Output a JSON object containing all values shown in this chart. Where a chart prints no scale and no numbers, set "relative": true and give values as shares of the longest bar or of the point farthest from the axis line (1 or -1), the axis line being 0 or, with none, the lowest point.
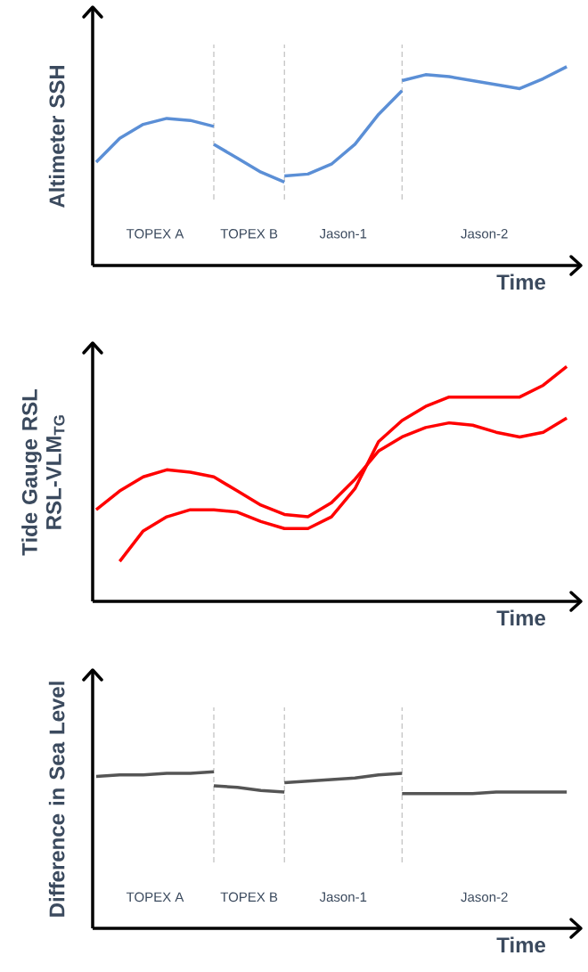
{
  "chart_data": [
    {
      "type": "line",
      "relative": true,
      "ylabel": "Altimeter SSH",
      "xlabel": "Time",
      "categories": [
        null,
        null,
        null,
        null,
        null,
        null,
        null,
        null,
        null,
        null,
        null,
        null,
        null,
        null,
        null,
        null,
        null,
        null,
        null,
        null,
        null
      ],
      "series": [
        {
          "color": "#5b8fd6",
          "values": [
            0.52,
            0.64,
            0.71,
            0.74,
            0.73,
            0.7,
            null,
            null,
            null,
            null,
            null,
            null,
            null,
            null,
            null,
            null,
            null,
            null,
            null,
            null,
            null
          ]
        },
        {
          "color": "#5b8fd6",
          "values": [
            null,
            null,
            null,
            null,
            null,
            0.61,
            0.54,
            0.47,
            0.42,
            null,
            null,
            null,
            null,
            null,
            null,
            null,
            null,
            null,
            null,
            null,
            null
          ]
        },
        {
          "color": "#5b8fd6",
          "values": [
            null,
            null,
            null,
            null,
            null,
            null,
            null,
            null,
            0.45,
            0.46,
            0.51,
            0.61,
            0.76,
            0.88,
            null,
            null,
            null,
            null,
            null,
            null,
            null
          ]
        },
        {
          "color": "#5b8fd6",
          "values": [
            null,
            null,
            null,
            null,
            null,
            null,
            null,
            null,
            null,
            null,
            null,
            null,
            null,
            0.93,
            0.96,
            0.95,
            0.93,
            0.91,
            0.89,
            0.94,
            1.0
          ]
        }
      ],
      "grid": "x",
      "annotations": [
        "TOPEX A",
        "TOPEX B",
        "Jason-1",
        "Jason-2"
      ]
    },
    {
      "type": "line",
      "relative": true,
      "ylabel": "Tide Gauge RSL RSL-VLM$_{TG}$",
      "xlabel": "Time",
      "categories": [
        null,
        null,
        null,
        null,
        null,
        null,
        null,
        null,
        null,
        null,
        null,
        null,
        null,
        null,
        null,
        null,
        null,
        null,
        null,
        null,
        null
      ],
      "series": [
        {
          "color": "#ff0000",
          "values": [
            0.39,
            0.47,
            0.53,
            0.56,
            0.55,
            0.53,
            0.47,
            0.41,
            0.37,
            0.36,
            0.42,
            0.52,
            0.64,
            0.7,
            0.74,
            0.76,
            0.75,
            0.72,
            0.7,
            0.72,
            0.78
          ]
        },
        {
          "color": "#ff0000",
          "values": [
            null,
            0.17,
            0.3,
            0.36,
            0.39,
            0.39,
            0.38,
            0.34,
            0.31,
            0.31,
            0.36,
            0.48,
            0.68,
            0.77,
            0.83,
            0.87,
            0.87,
            0.87,
            0.87,
            0.92,
            1.0
          ]
        }
      ]
    },
    {
      "type": "line",
      "relative": true,
      "ylabel": "Difference in Sea Level",
      "xlabel": "Time",
      "categories": [
        null,
        null,
        null,
        null,
        null,
        null,
        null,
        null,
        null,
        null,
        null,
        null,
        null,
        null,
        null,
        null,
        null,
        null,
        null,
        null,
        null
      ],
      "series": [
        {
          "color": "#555555",
          "values": [
            0.97,
            0.98,
            0.98,
            0.99,
            0.99,
            1.0,
            null,
            null,
            null,
            null,
            null,
            null,
            null,
            null,
            null,
            null,
            null,
            null,
            null,
            null,
            null
          ]
        },
        {
          "color": "#555555",
          "values": [
            null,
            null,
            null,
            null,
            null,
            0.91,
            0.9,
            0.88,
            0.87,
            null,
            null,
            null,
            null,
            null,
            null,
            null,
            null,
            null,
            null,
            null,
            null
          ]
        },
        {
          "color": "#555555",
          "values": [
            null,
            null,
            null,
            null,
            null,
            null,
            null,
            null,
            0.93,
            0.94,
            0.95,
            0.96,
            0.98,
            0.99,
            null,
            null,
            null,
            null,
            null,
            null,
            null
          ]
        },
        {
          "color": "#555555",
          "values": [
            null,
            null,
            null,
            null,
            null,
            null,
            null,
            null,
            null,
            null,
            null,
            null,
            null,
            0.86,
            0.86,
            0.86,
            0.86,
            0.87,
            0.87,
            0.87,
            0.87
          ]
        }
      ],
      "grid": "x",
      "annotations": [
        "TOPEX A",
        "TOPEX B",
        "Jason-1",
        "Jason-2"
      ]
    }
  ]
}
